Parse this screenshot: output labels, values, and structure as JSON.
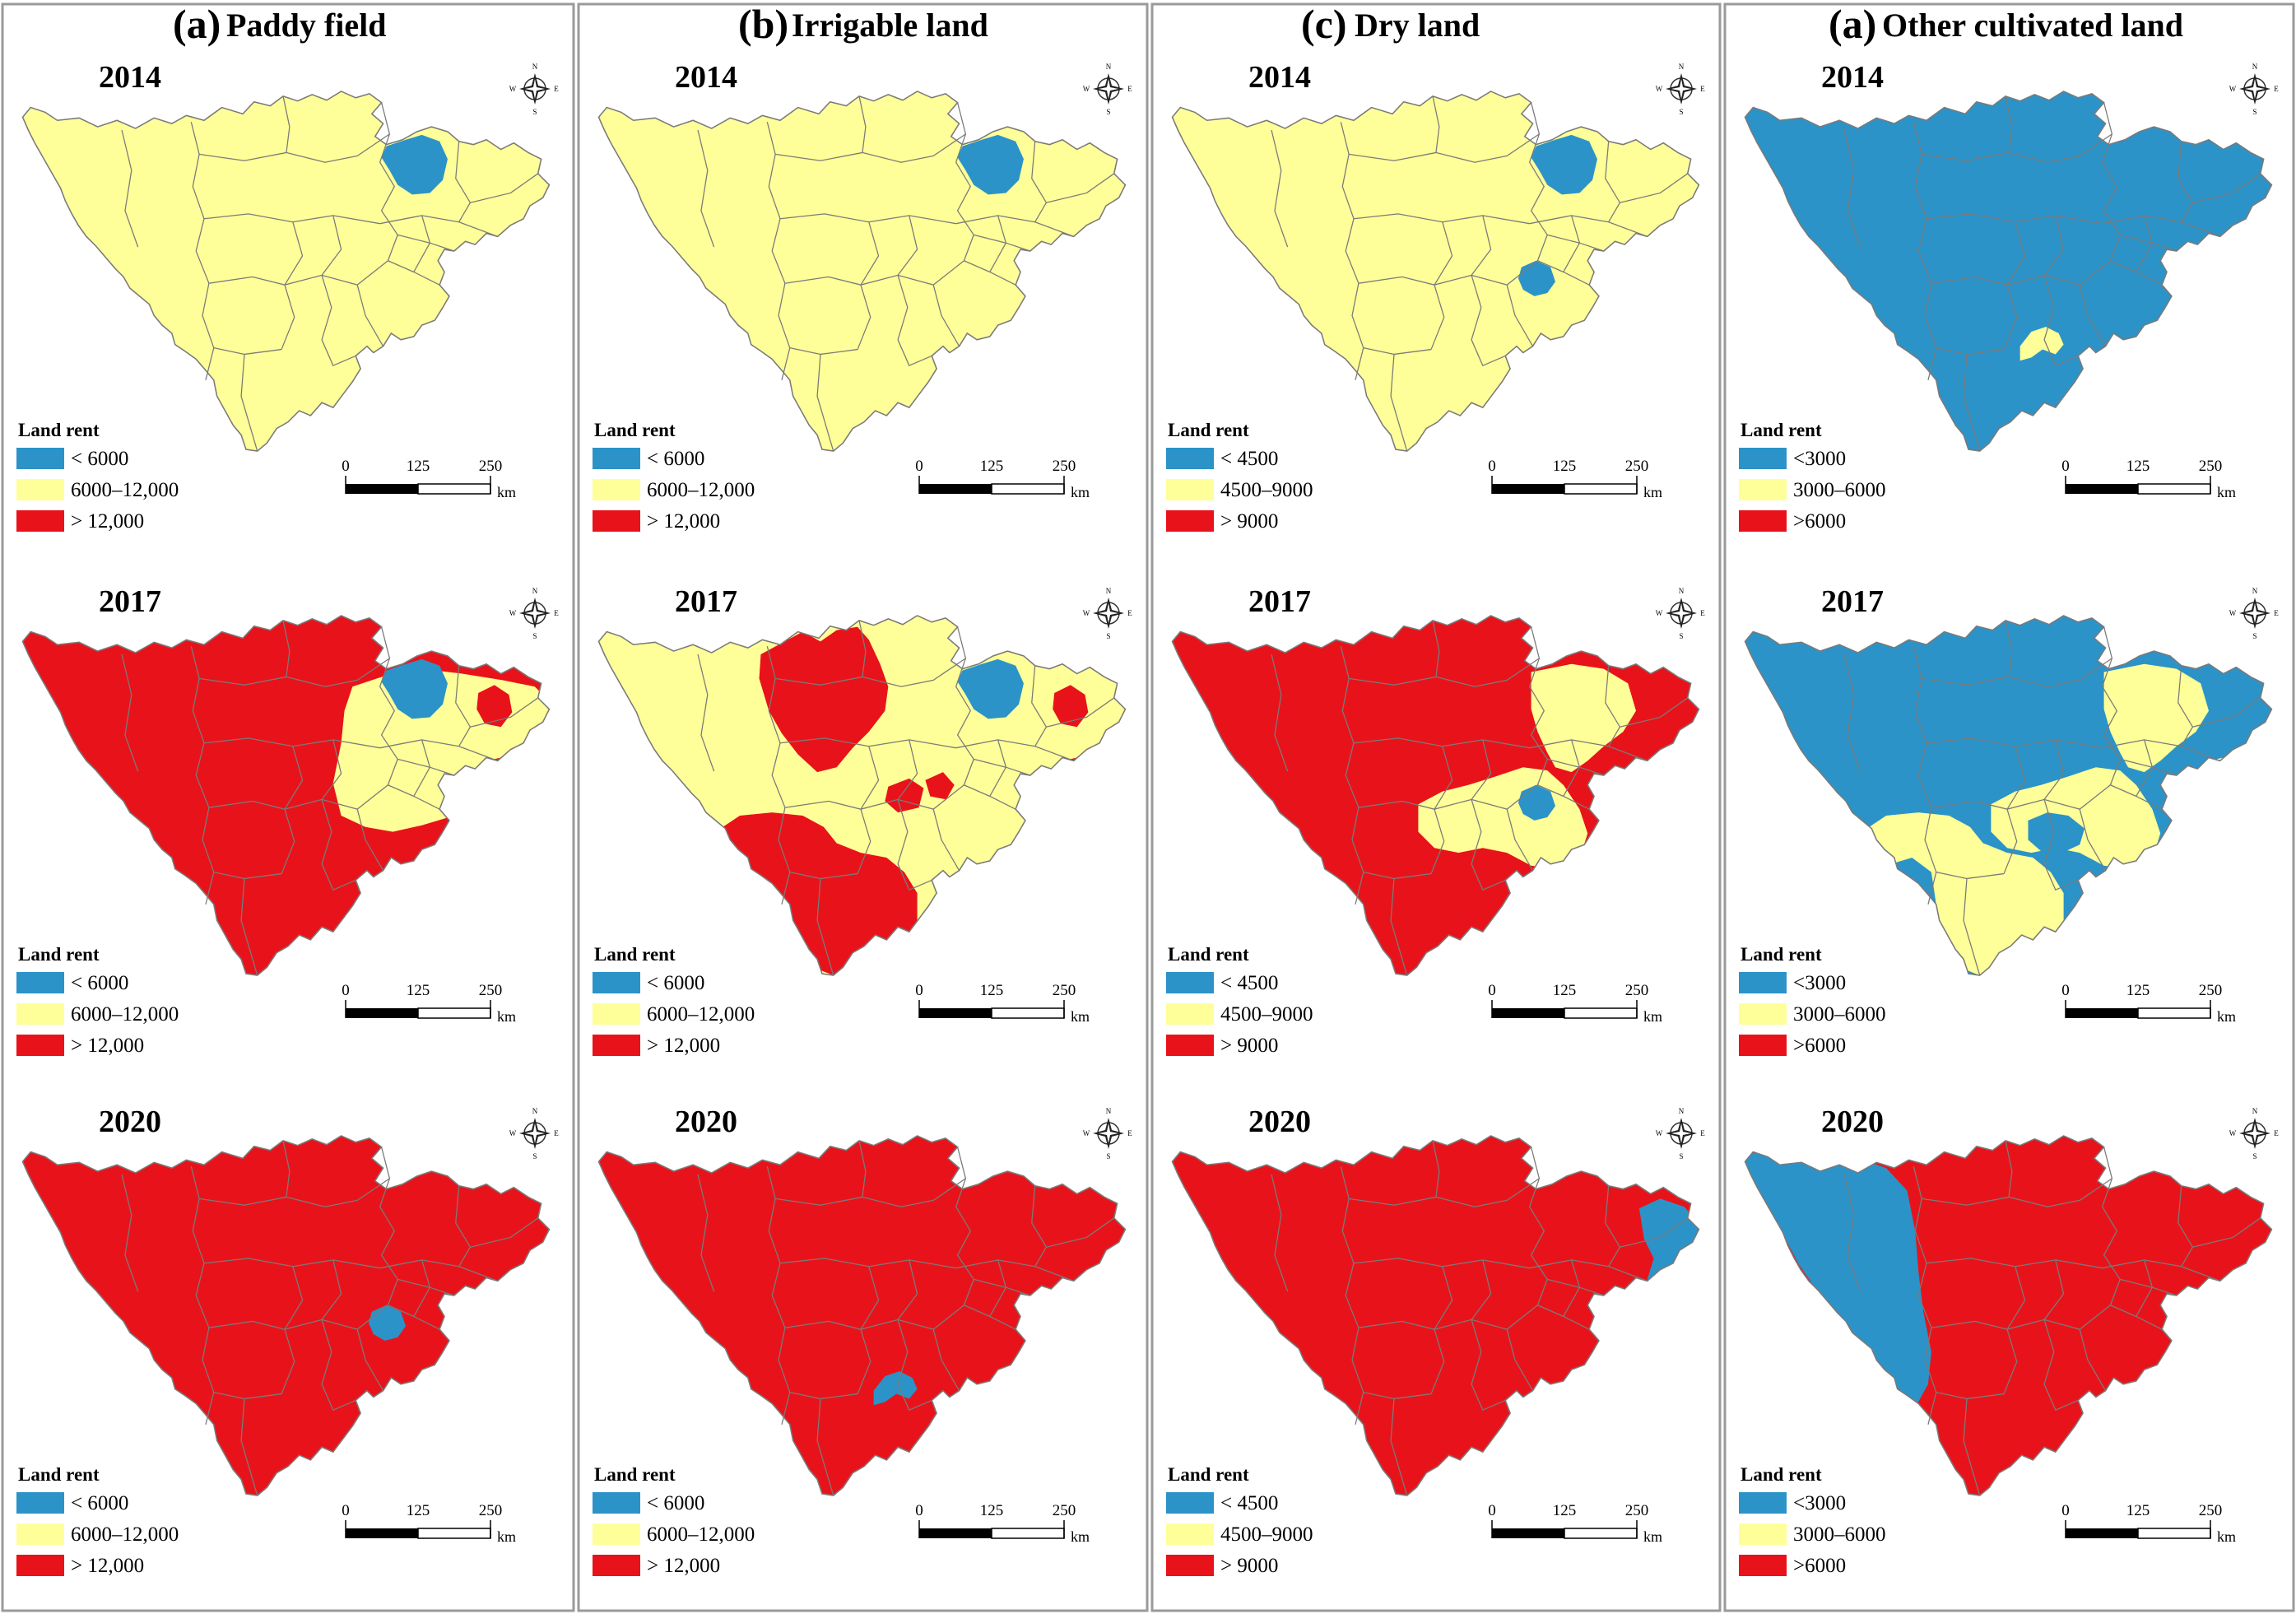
{
  "colors": {
    "low": "#2b93c8",
    "mid": "#ffff99",
    "high": "#e8131a",
    "border": "#7a7a7a",
    "frame": "#9a9a9a"
  },
  "panels": [
    {
      "letter": "(a)",
      "name": "Paddy field",
      "legend_title": "Land rent",
      "legend": [
        "< 6000",
        "6000–12,000",
        "> 12,000"
      ],
      "scale": {
        "ticks": [
          "0",
          "125",
          "250"
        ],
        "unit": "km"
      },
      "maps": [
        {
          "year": "2014",
          "base": "mid",
          "patches": [
            {
              "shape": "ne",
              "class": "low"
            }
          ]
        },
        {
          "year": "2017",
          "base": "high",
          "patches": [
            {
              "shape": "east",
              "class": "mid"
            },
            {
              "shape": "ne",
              "class": "low"
            },
            {
              "shape": "ne2",
              "class": "high"
            },
            {
              "shape": "e3",
              "class": "high"
            }
          ]
        },
        {
          "year": "2020",
          "base": "high",
          "patches": [
            {
              "shape": "center",
              "class": "low"
            }
          ]
        }
      ]
    },
    {
      "letter": "(b)",
      "name": "Irrigable land",
      "legend_title": "Land rent",
      "legend": [
        "< 6000",
        "6000–12,000",
        "> 12,000"
      ],
      "scale": {
        "ticks": [
          "0",
          "125",
          "250"
        ],
        "unit": "km"
      },
      "maps": [
        {
          "year": "2014",
          "base": "mid",
          "patches": [
            {
              "shape": "ne",
              "class": "low"
            }
          ]
        },
        {
          "year": "2017",
          "base": "mid",
          "patches": [
            {
              "shape": "north",
              "class": "high"
            },
            {
              "shape": "south",
              "class": "high"
            },
            {
              "shape": "ne",
              "class": "low"
            },
            {
              "shape": "ne2",
              "class": "high"
            },
            {
              "shape": "m1",
              "class": "high"
            },
            {
              "shape": "m2",
              "class": "high"
            },
            {
              "shape": "e3",
              "class": "high"
            }
          ]
        },
        {
          "year": "2020",
          "base": "high",
          "patches": [
            {
              "shape": "sc",
              "class": "low"
            }
          ]
        }
      ]
    },
    {
      "letter": "(c)",
      "name": "Dry land",
      "legend_title": "Land rent",
      "legend": [
        "< 4500",
        "4500–9000",
        "> 9000"
      ],
      "scale": {
        "ticks": [
          "0",
          "125",
          "250"
        ],
        "unit": "km"
      },
      "maps": [
        {
          "year": "2014",
          "base": "mid",
          "patches": [
            {
              "shape": "ne",
              "class": "low"
            },
            {
              "shape": "center",
              "class": "low"
            }
          ]
        },
        {
          "year": "2017",
          "base": "high",
          "patches": [
            {
              "shape": "ne_y",
              "class": "mid"
            },
            {
              "shape": "c_y",
              "class": "mid"
            },
            {
              "shape": "center",
              "class": "low"
            }
          ]
        },
        {
          "year": "2020",
          "base": "high",
          "patches": [
            {
              "shape": "ee",
              "class": "low"
            }
          ]
        }
      ]
    },
    {
      "letter": "(a)",
      "name": "Other cultivated land",
      "legend_title": "Land rent",
      "legend": [
        "<3000",
        "3000–6000",
        ">6000"
      ],
      "scale": {
        "ticks": [
          "0",
          "125",
          "250"
        ],
        "unit": "km"
      },
      "maps": [
        {
          "year": "2014",
          "base": "low",
          "patches": [
            {
              "shape": "sc",
              "class": "mid"
            }
          ]
        },
        {
          "year": "2017",
          "base": "low",
          "patches": [
            {
              "shape": "south",
              "class": "mid"
            },
            {
              "shape": "sw_tip",
              "class": "low"
            },
            {
              "shape": "c_y",
              "class": "mid"
            },
            {
              "shape": "cb",
              "class": "low"
            },
            {
              "shape": "ne_y",
              "class": "mid"
            },
            {
              "shape": "e3",
              "class": "mid"
            }
          ]
        },
        {
          "year": "2020",
          "base": "high",
          "patches": [
            {
              "shape": "west",
              "class": "low"
            }
          ]
        }
      ]
    }
  ]
}
